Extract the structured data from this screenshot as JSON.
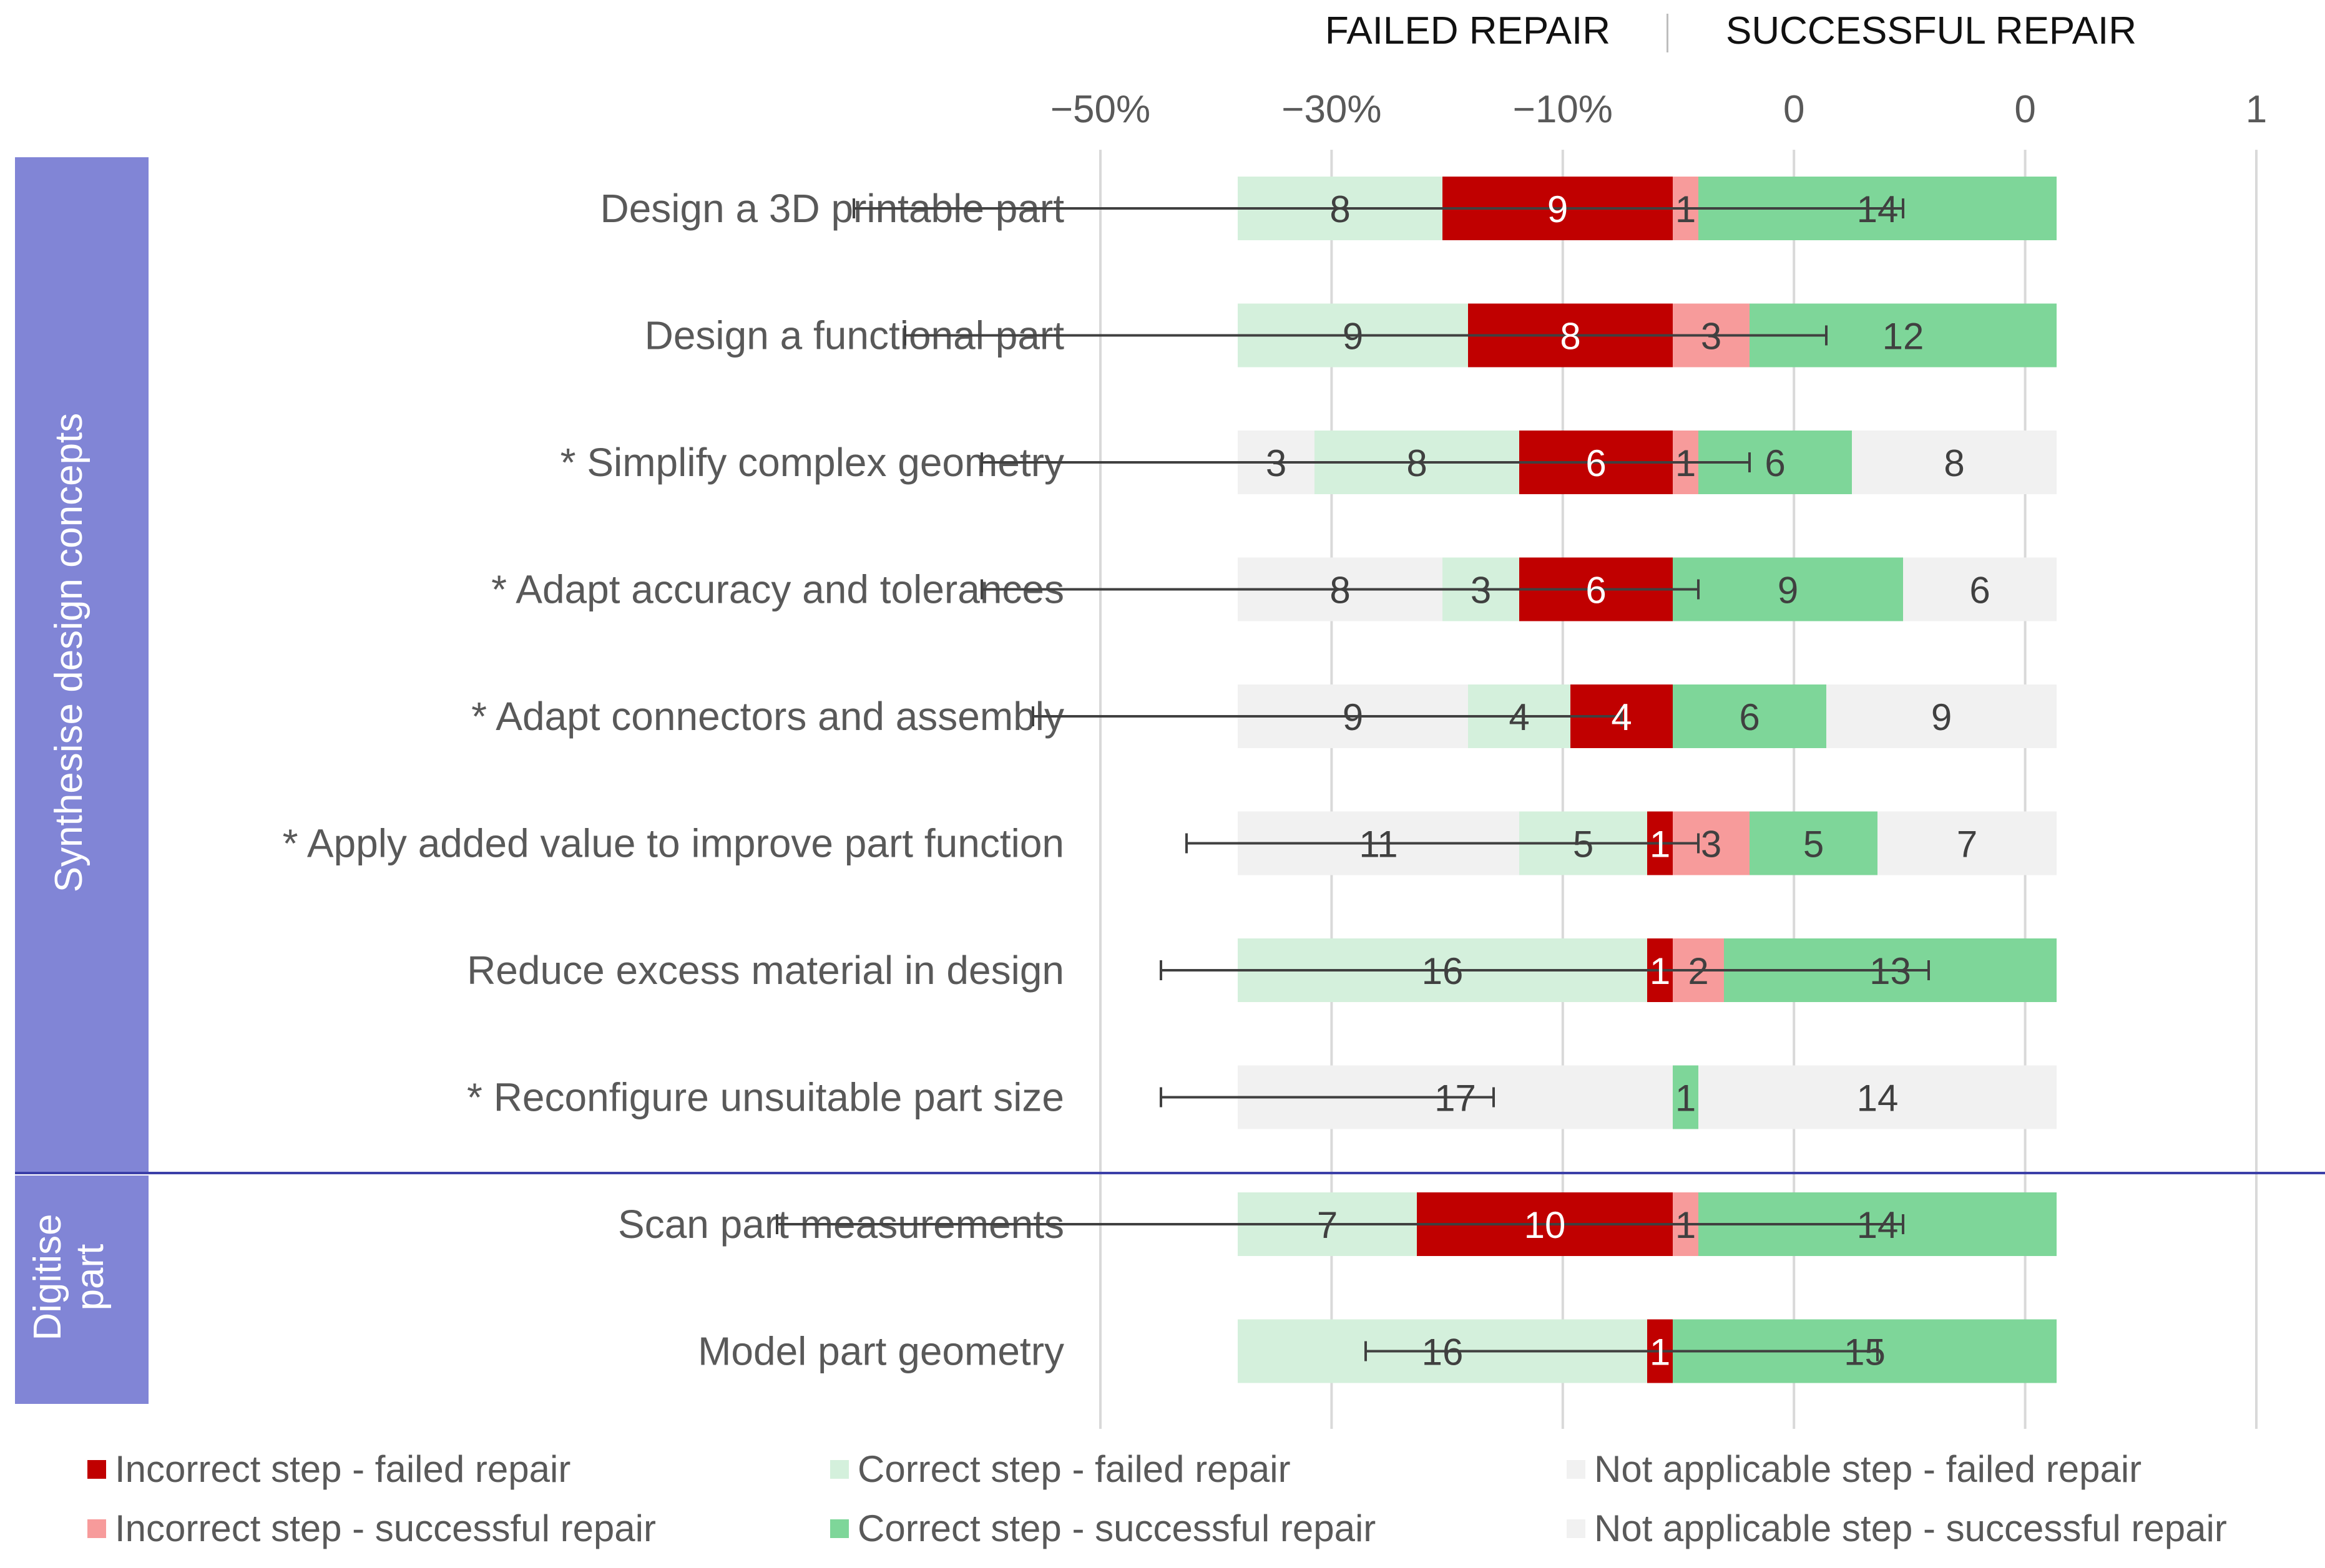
{
  "header": {
    "failed_label": "FAILED REPAIR",
    "success_label": "SUCCESSFUL REPAIR"
  },
  "chart_data": {
    "type": "bar",
    "subtype": "diverging-stacked-bar",
    "axis": {
      "tick_labels": [
        "−50%",
        "−30%",
        "−10%",
        "0",
        "0",
        "1"
      ],
      "tick_values": [
        -55,
        -36,
        -17,
        2,
        21,
        40
      ],
      "range": [
        -55,
        40
      ]
    },
    "groups": [
      {
        "label": "Synthesise design concepts",
        "rows": [
          0,
          1,
          2,
          3,
          4,
          5,
          6,
          7
        ]
      },
      {
        "label": "Digitise part",
        "rows": [
          8,
          9
        ]
      }
    ],
    "categories": [
      "Design a 3D printable part",
      "Design a functional part",
      "* Simplify complex geometry",
      "* Adapt accuracy and tolerances",
      "* Adapt connectors and assembly",
      "* Apply added value to improve part function",
      "Reduce excess material in design",
      "* Reconfigure unsuitable part size",
      "Scan part measurements",
      "Model part geometry"
    ],
    "series": [
      {
        "key": "na_failed",
        "name": "Not applicable step - failed repair",
        "color": "#f1f1f1",
        "side": "failed",
        "values": [
          0,
          0,
          3,
          8,
          9,
          11,
          0,
          17,
          0,
          0
        ],
        "labels": [
          "",
          "",
          "3",
          "8",
          "9",
          "11",
          "",
          "17",
          "",
          ""
        ]
      },
      {
        "key": "correct_failed",
        "name": "Correct step - failed repair",
        "color": "#d4f0dc",
        "side": "failed",
        "values": [
          8,
          9,
          8,
          3,
          4,
          5,
          16,
          0,
          7,
          16
        ],
        "labels": [
          "8",
          "9",
          "8",
          "3",
          "4",
          "5",
          "16",
          "",
          "7",
          "16"
        ]
      },
      {
        "key": "incorrect_failed",
        "name": "Incorrect step - failed repair",
        "color": "#c00000",
        "side": "failed",
        "values": [
          9,
          8,
          6,
          6,
          4,
          1,
          1,
          0,
          10,
          1
        ],
        "labels": [
          "9",
          "8",
          "6",
          "6",
          "4",
          "1",
          "1",
          "",
          "10",
          "1"
        ]
      },
      {
        "key": "incorrect_success",
        "name": "Incorrect step - successful repair",
        "color": "#f79b9b",
        "side": "success",
        "values": [
          1,
          3,
          1,
          0,
          0,
          3,
          2,
          0,
          1,
          0
        ],
        "labels": [
          "1",
          "3",
          "1",
          "",
          "",
          "3",
          "2",
          "",
          "1",
          ""
        ]
      },
      {
        "key": "correct_success",
        "name": "Correct step - successful repair",
        "color": "#7ed699",
        "side": "success",
        "values": [
          14,
          12,
          6,
          9,
          6,
          5,
          13,
          1,
          14,
          15
        ],
        "labels": [
          "14",
          "12",
          "6",
          "9",
          "6",
          "5",
          "13",
          "1",
          "14",
          "15"
        ]
      },
      {
        "key": "na_success",
        "name": "Not applicable step - successful repair",
        "color": "#f1f1f1",
        "side": "success",
        "values": [
          0,
          0,
          8,
          6,
          9,
          7,
          0,
          14,
          0,
          0
        ],
        "labels": [
          "",
          "",
          "8",
          "6",
          "9",
          "7",
          "",
          "14",
          "",
          ""
        ]
      }
    ],
    "error_bars": [
      {
        "low": -32,
        "high": 9
      },
      {
        "low": -30,
        "high": 6
      },
      {
        "low": -27,
        "high": 3
      },
      {
        "low": -27,
        "high": 1
      },
      {
        "low": -25,
        "high": -2
      },
      {
        "low": -19,
        "high": 1
      },
      {
        "low": -20,
        "high": 10
      },
      {
        "low": -20,
        "high": -7
      },
      {
        "low": -35,
        "high": 9
      },
      {
        "low": -12,
        "high": 8
      }
    ],
    "legend_order": [
      "incorrect_failed",
      "correct_failed",
      "na_failed",
      "incorrect_success",
      "correct_success",
      "na_success"
    ],
    "legend_position": "bottom",
    "grid": true
  }
}
